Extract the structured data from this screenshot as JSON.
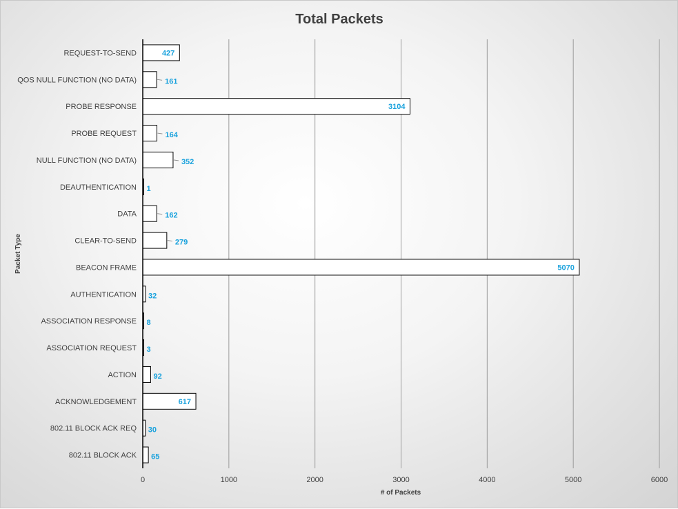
{
  "chart_data": {
    "type": "bar",
    "orientation": "horizontal",
    "title": "Total Packets",
    "xlabel": "# of Packets",
    "ylabel": "Packet Type",
    "xlim": [
      0,
      6000
    ],
    "xticks": [
      0,
      1000,
      2000,
      3000,
      4000,
      5000,
      6000
    ],
    "grid": "vertical",
    "legend": "none",
    "categories": [
      "REQUEST-TO-SEND",
      "QOS NULL FUNCTION (NO DATA)",
      "PROBE RESPONSE",
      "PROBE REQUEST",
      "NULL FUNCTION (NO DATA)",
      "DEAUTHENTICATION",
      "DATA",
      "CLEAR-TO-SEND",
      "BEACON FRAME",
      "AUTHENTICATION",
      "ASSOCIATION RESPONSE",
      "ASSOCIATION REQUEST",
      "ACTION",
      "ACKNOWLEDGEMENT",
      "802.11 BLOCK ACK REQ",
      "802.11 BLOCK ACK"
    ],
    "values": [
      427,
      161,
      3104,
      164,
      352,
      1,
      162,
      279,
      5070,
      32,
      8,
      3,
      92,
      617,
      30,
      65
    ],
    "colors": {
      "bar_fill": "#ffffff",
      "bar_stroke": "#000000",
      "data_label": "#1aa2dd",
      "gridline": "#9a9a9a",
      "text": "#404040"
    }
  }
}
